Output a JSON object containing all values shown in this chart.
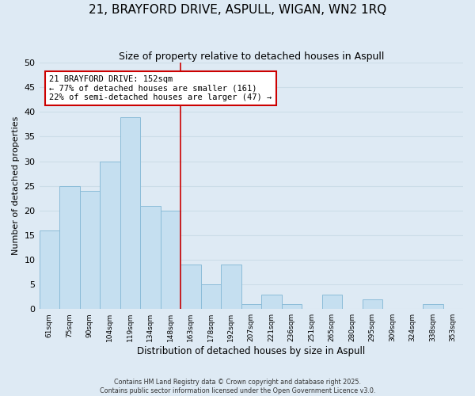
{
  "title": "21, BRAYFORD DRIVE, ASPULL, WIGAN, WN2 1RQ",
  "subtitle": "Size of property relative to detached houses in Aspull",
  "xlabel": "Distribution of detached houses by size in Aspull",
  "ylabel": "Number of detached properties",
  "bin_labels": [
    "61sqm",
    "75sqm",
    "90sqm",
    "104sqm",
    "119sqm",
    "134sqm",
    "148sqm",
    "163sqm",
    "178sqm",
    "192sqm",
    "207sqm",
    "221sqm",
    "236sqm",
    "251sqm",
    "265sqm",
    "280sqm",
    "295sqm",
    "309sqm",
    "324sqm",
    "338sqm",
    "353sqm"
  ],
  "bar_heights": [
    16,
    25,
    24,
    30,
    39,
    21,
    20,
    9,
    5,
    9,
    1,
    3,
    1,
    0,
    3,
    0,
    2,
    0,
    0,
    1,
    0
  ],
  "bar_color": "#c5dff0",
  "bar_edge_color": "#8bbcd8",
  "grid_color": "#ccdde8",
  "bg_color": "#deeaf4",
  "vline_color": "#cc0000",
  "annotation_text": "21 BRAYFORD DRIVE: 152sqm\n← 77% of detached houses are smaller (161)\n22% of semi-detached houses are larger (47) →",
  "annotation_box_color": "#ffffff",
  "annotation_box_edge": "#cc0000",
  "footer_line1": "Contains HM Land Registry data © Crown copyright and database right 2025.",
  "footer_line2": "Contains public sector information licensed under the Open Government Licence v3.0.",
  "ylim": [
    0,
    50
  ],
  "title_fontsize": 11,
  "subtitle_fontsize": 9
}
